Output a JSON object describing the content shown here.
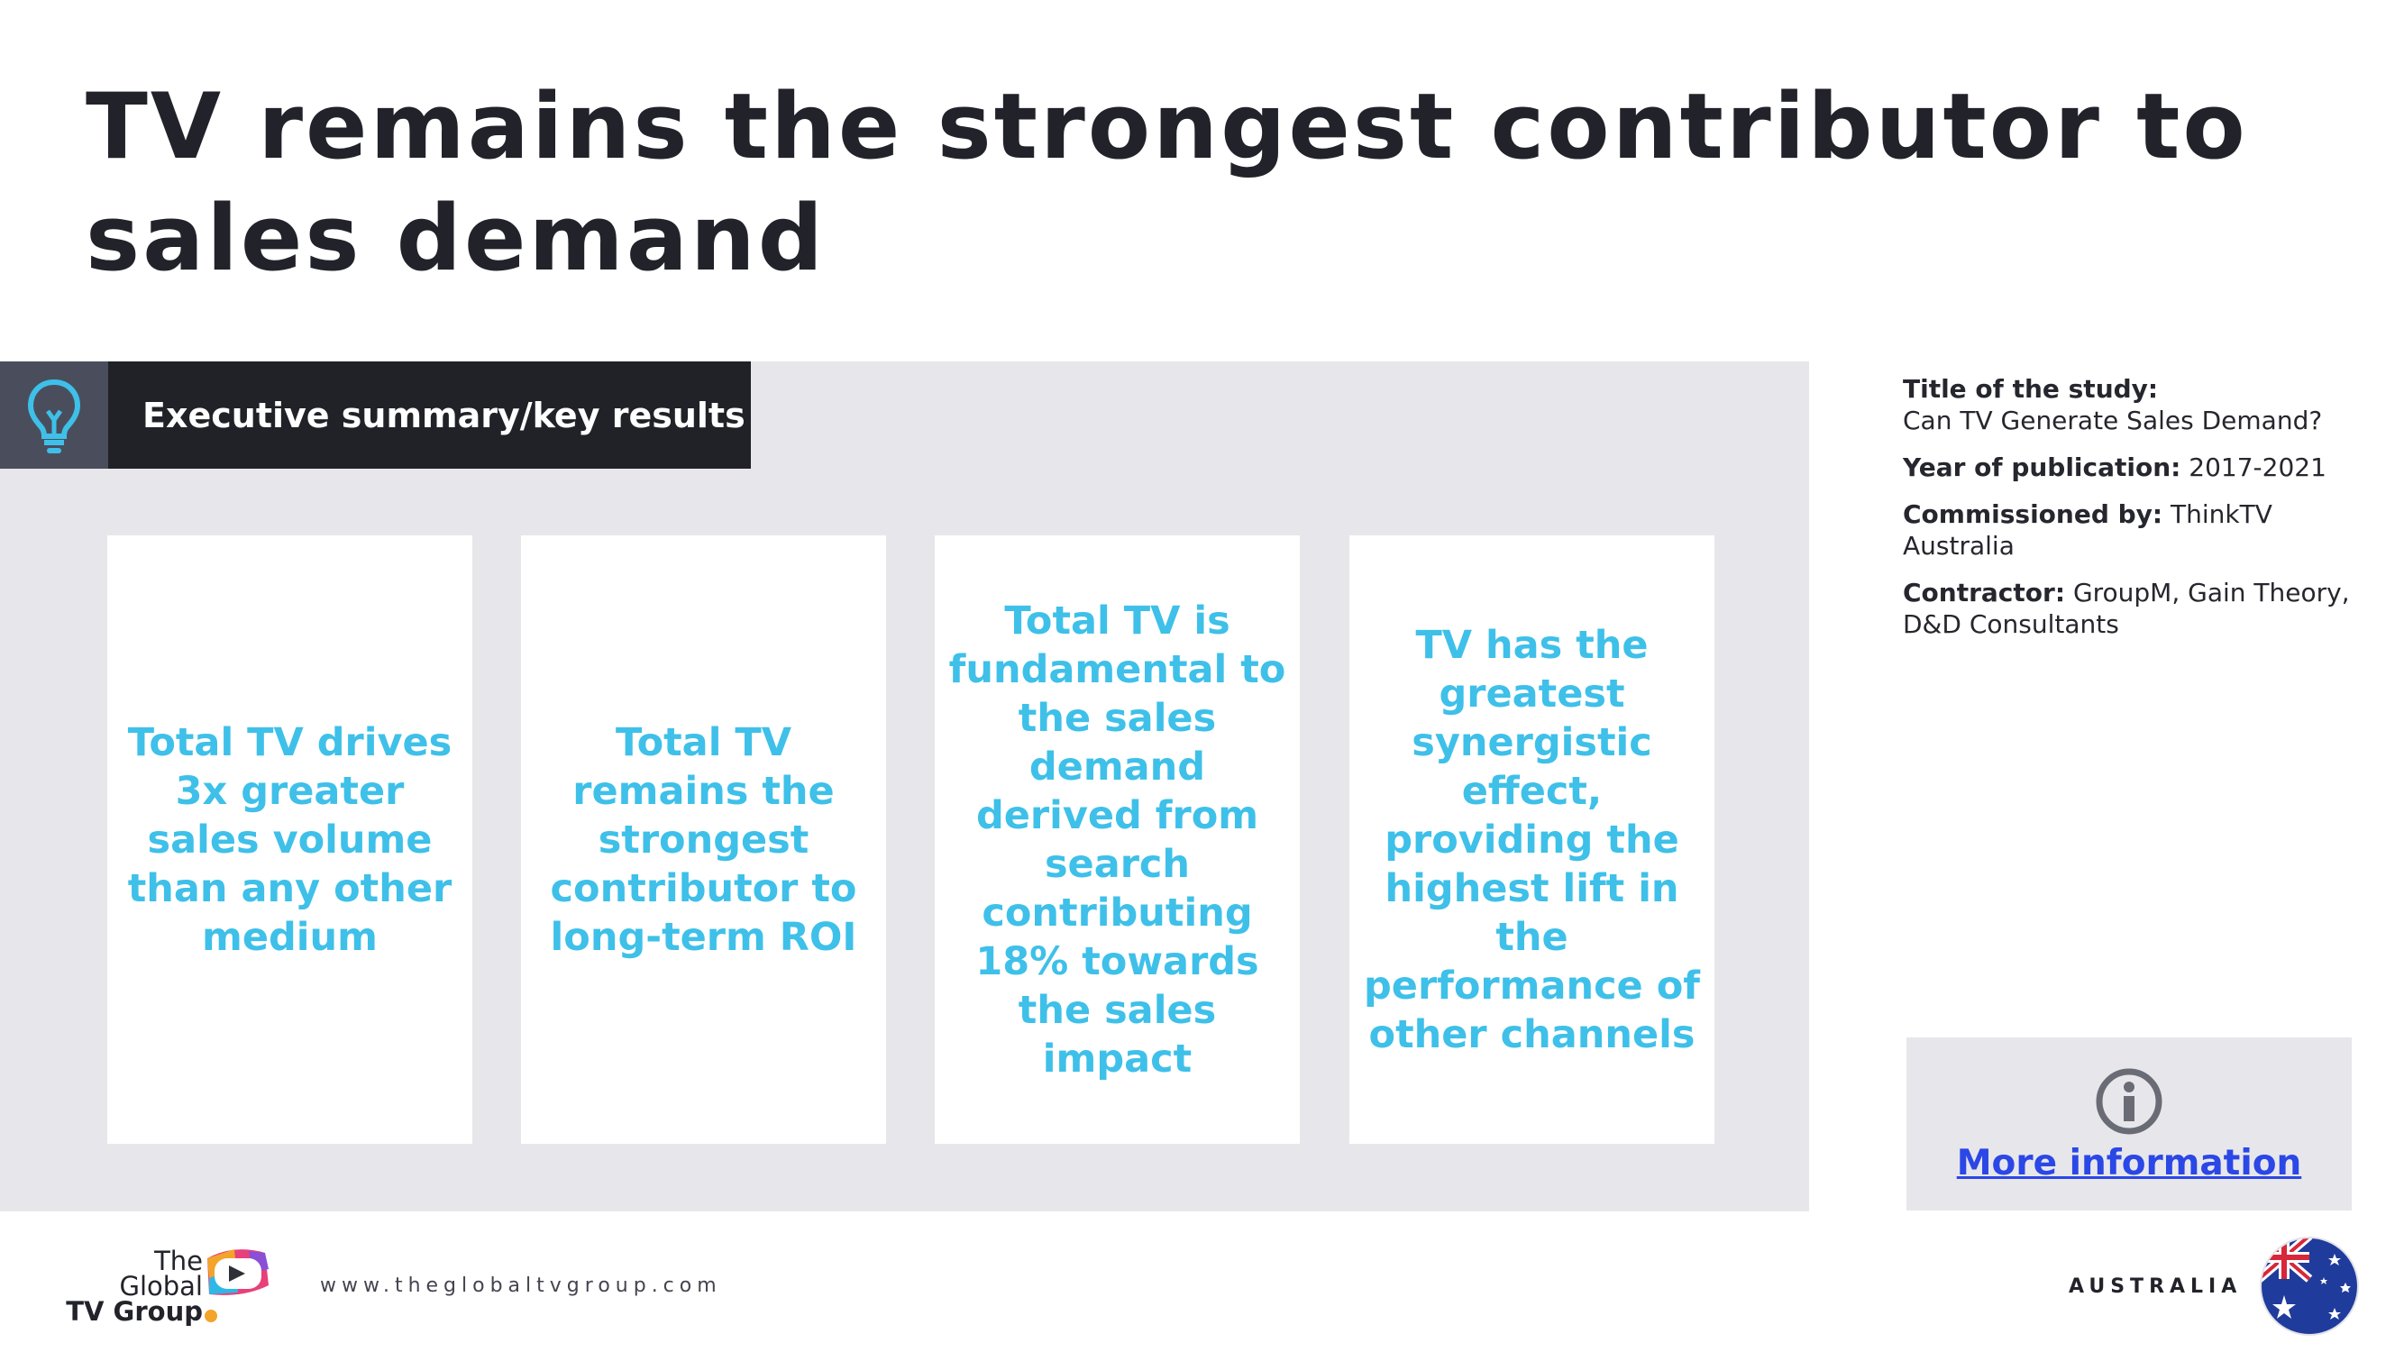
{
  "page": {
    "title": "TV remains the strongest contributor to sales demand"
  },
  "summary": {
    "header": "Executive summary/key results",
    "header_icon": "lightbulb-icon",
    "cards": [
      "Total TV drives 3x greater sales volume than any other medium",
      "Total TV remains the strongest contributor to long-term ROI",
      "Total TV is fundamental to the sales demand derived from search contributing 18% towards the sales impact",
      "TV has the greatest synergistic effect, providing the highest lift in the performance of other channels"
    ]
  },
  "study": {
    "title_label": "Title of the study:",
    "title_value": "Can TV Generate Sales Demand?",
    "year_label": "Year of publication:",
    "year_value": "2017-2021",
    "commissioned_label": "Commissioned by:",
    "commissioned_value": "ThinkTV Australia",
    "contractor_label": "Contractor:",
    "contractor_value": "GroupM, Gain Theory, D&D Consultants"
  },
  "more_info": {
    "label": "More information",
    "icon": "info-icon"
  },
  "footer": {
    "logo_line1": "The",
    "logo_line2": "Global",
    "logo_line3": "TV Group",
    "url": "www.theglobaltvgroup.com",
    "country": "AUSTRALIA",
    "flag_icon": "australia-flag-icon"
  },
  "colors": {
    "accent": "#3ec0e9",
    "dark": "#212128",
    "panel": "#e7e7eb",
    "link": "#2b47e6"
  }
}
